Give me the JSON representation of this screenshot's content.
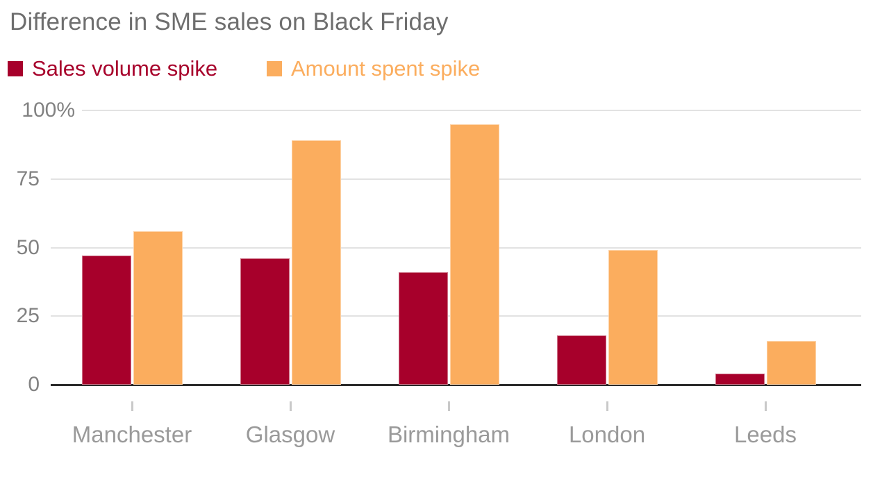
{
  "chart_data": {
    "type": "bar",
    "title": "Difference in SME sales on Black Friday",
    "categories": [
      "Manchester",
      "Glasgow",
      "Birmingham",
      "London",
      "Leeds"
    ],
    "series": [
      {
        "name": "Sales volume spike",
        "color": "#a7002b",
        "values": [
          47,
          46,
          41,
          18,
          4
        ]
      },
      {
        "name": "Amount spent spike",
        "color": "#fbad5e",
        "values": [
          56,
          89,
          95,
          49,
          16
        ]
      }
    ],
    "y_axis": {
      "ticks": [
        0,
        25,
        50,
        75,
        100
      ],
      "tick_labels": [
        "0",
        "25",
        "50",
        "75",
        "100%"
      ],
      "min": 0,
      "max": 100,
      "unit": "%"
    },
    "grid": true,
    "legend_position": "top-left",
    "colors": {
      "title": "#6e6e6e",
      "y_label": "#828282",
      "x_label": "#9a9a9a",
      "gridline": "#e2e2e2",
      "axis": "#2b2b2b",
      "tick": "#c9c9c9",
      "background": "#ffffff"
    }
  }
}
